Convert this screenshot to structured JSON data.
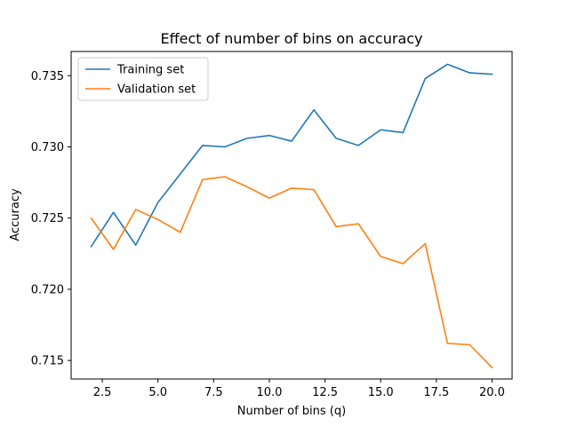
{
  "chart_data": {
    "type": "line",
    "title": "Effect of number of bins on accuracy",
    "xlabel": "Number of bins (q)",
    "ylabel": "Accuracy",
    "xlim": [
      1.1,
      20.9
    ],
    "ylim": [
      0.7137,
      0.7367
    ],
    "xticks": [
      2.5,
      5.0,
      7.5,
      10.0,
      12.5,
      15.0,
      17.5,
      20.0
    ],
    "xtick_labels": [
      "2.5",
      "5.0",
      "7.5",
      "10.0",
      "12.5",
      "15.0",
      "17.5",
      "20.0"
    ],
    "yticks": [
      0.715,
      0.72,
      0.725,
      0.73,
      0.735
    ],
    "ytick_labels": [
      "0.715",
      "0.720",
      "0.725",
      "0.730",
      "0.735"
    ],
    "grid": false,
    "legend_position": "top-left",
    "x": [
      2,
      3,
      4,
      5,
      6,
      7,
      8,
      9,
      10,
      11,
      12,
      13,
      14,
      15,
      16,
      17,
      18,
      19,
      20
    ],
    "series": [
      {
        "name": "Training set",
        "color": "#1f77b4",
        "values": [
          0.723,
          0.7254,
          0.7231,
          0.7261,
          0.7281,
          0.7301,
          0.73,
          0.7306,
          0.7308,
          0.7304,
          0.7326,
          0.7306,
          0.7301,
          0.7312,
          0.731,
          0.7348,
          0.7358,
          0.7352,
          0.7351
        ]
      },
      {
        "name": "Validation set",
        "color": "#ff7f0e",
        "values": [
          0.725,
          0.7228,
          0.7256,
          0.7249,
          0.724,
          0.7277,
          0.7279,
          0.7272,
          0.7264,
          0.7271,
          0.727,
          0.7244,
          0.7246,
          0.7223,
          0.7218,
          0.7232,
          0.7162,
          0.7161,
          0.7145
        ]
      }
    ]
  }
}
